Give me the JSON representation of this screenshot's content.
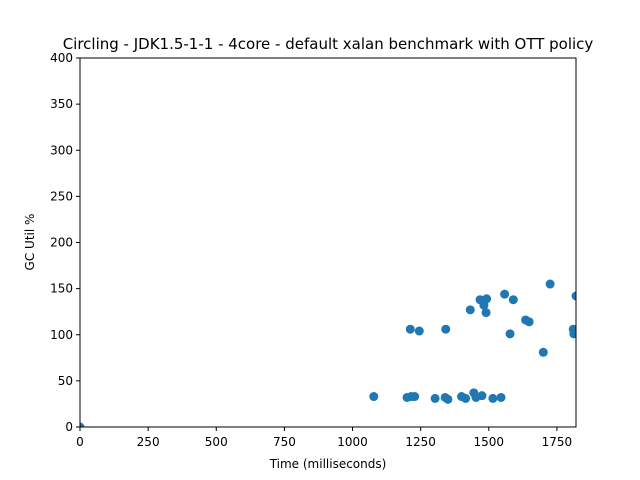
{
  "chart_data": {
    "type": "scatter",
    "title": "Circling - JDK1.5-1-1 - 4core -  default xalan benchmark with OTT policy",
    "xlabel": "Time (milliseconds)",
    "ylabel": "GC Util %",
    "xlim": [
      0,
      1820
    ],
    "ylim": [
      0,
      400
    ],
    "xticks": [
      0,
      250,
      500,
      750,
      1000,
      1250,
      1500,
      1750
    ],
    "yticks": [
      0,
      50,
      100,
      150,
      200,
      250,
      300,
      350,
      400
    ],
    "grid": false,
    "marker_color": "#1f77b4",
    "series": [
      {
        "points": [
          [
            0,
            0
          ],
          [
            1078,
            33
          ],
          [
            1200,
            32
          ],
          [
            1215,
            33
          ],
          [
            1228,
            33
          ],
          [
            1212,
            106
          ],
          [
            1245,
            104
          ],
          [
            1303,
            31
          ],
          [
            1340,
            32
          ],
          [
            1350,
            30
          ],
          [
            1342,
            106
          ],
          [
            1400,
            33
          ],
          [
            1415,
            31
          ],
          [
            1445,
            37
          ],
          [
            1453,
            32
          ],
          [
            1475,
            34
          ],
          [
            1432,
            127
          ],
          [
            1468,
            138
          ],
          [
            1482,
            132
          ],
          [
            1492,
            139
          ],
          [
            1490,
            124
          ],
          [
            1515,
            31
          ],
          [
            1545,
            32
          ],
          [
            1558,
            144
          ],
          [
            1578,
            101
          ],
          [
            1590,
            138
          ],
          [
            1635,
            116
          ],
          [
            1648,
            114
          ],
          [
            1700,
            81
          ],
          [
            1725,
            155
          ],
          [
            1810,
            106
          ],
          [
            1812,
            101
          ],
          [
            1820,
            142
          ]
        ]
      }
    ]
  }
}
